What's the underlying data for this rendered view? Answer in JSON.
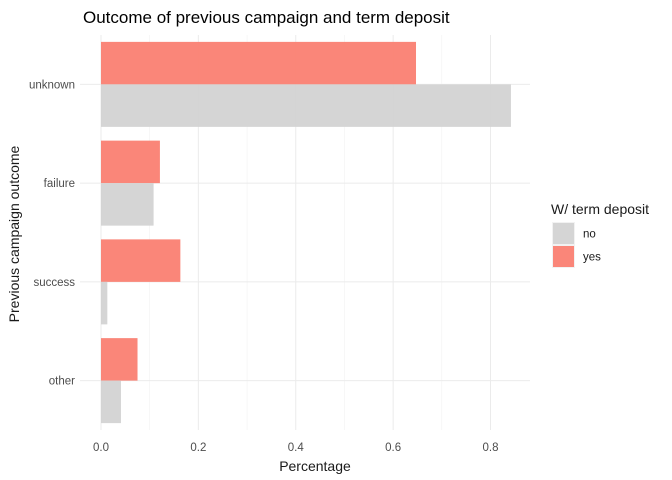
{
  "chart_data": {
    "type": "bar",
    "orientation": "horizontal",
    "title": "Outcome of previous campaign and term deposit",
    "xlabel": "Percentage",
    "ylabel": "Previous campaign outcome",
    "xlim": [
      0,
      0.88
    ],
    "xticks": [
      0.0,
      0.2,
      0.4,
      0.6,
      0.8
    ],
    "xtick_labels": [
      "0.0",
      "0.2",
      "0.4",
      "0.6",
      "0.8"
    ],
    "categories": [
      "unknown",
      "failure",
      "success",
      "other"
    ],
    "series": [
      {
        "name": "no",
        "color": "#d3d3d3",
        "values": [
          0.842,
          0.108,
          0.013,
          0.041
        ]
      },
      {
        "name": "yes",
        "color": "#fa8072",
        "values": [
          0.647,
          0.121,
          0.163,
          0.075
        ]
      }
    ],
    "legend": {
      "title": "W/ term deposit",
      "position": "right"
    },
    "grid": true
  }
}
